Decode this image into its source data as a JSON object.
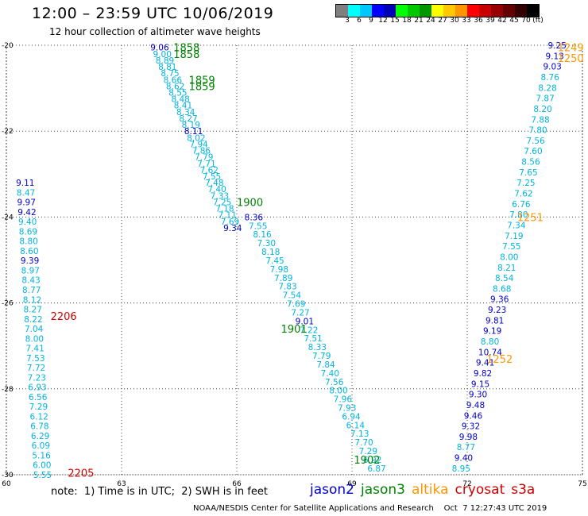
{
  "title": "12:00 – 23:59 UTC 10/06/2019",
  "subtitle": "12 hour collection of altimeter wave heights",
  "colorbar": {
    "colors": [
      "#7f7f7f",
      "#00ffff",
      "#00c8ff",
      "#0000ff",
      "#0000b4",
      "#00ff00",
      "#00c800",
      "#009600",
      "#ffff00",
      "#ffc800",
      "#ff9600",
      "#ff0000",
      "#c80000",
      "#960000",
      "#640000",
      "#320000",
      "#000000"
    ],
    "labels": [
      "3",
      "6",
      "9",
      "12",
      "15",
      "18",
      "21",
      "24",
      "27",
      "30",
      "33",
      "36",
      "39",
      "42",
      "45",
      "70",
      "(ft)"
    ]
  },
  "axes": {
    "x_ticks": [
      "60",
      "63",
      "66",
      "69",
      "72",
      "75"
    ],
    "y_ticks": [
      "-20",
      "-22",
      "-24",
      "-26",
      "-28",
      "-30"
    ],
    "xlim": [
      60,
      75
    ],
    "ylim": [
      -30,
      -20
    ]
  },
  "colors": {
    "jason2": "#0000c8",
    "jason3": "#008000",
    "altika": "#ff9600",
    "cryosat": "#d00000",
    "s3a": "#c80000",
    "obs_light": "#00b4dc",
    "obs_dark": "#0000c8",
    "grid": "#444444"
  },
  "chart_data": {
    "type": "scatter",
    "xlim": [
      60,
      75
    ],
    "ylim": [
      -30,
      -20
    ],
    "tracks": [
      {
        "satellite": "s3a",
        "color": "#00b4dc",
        "lon_start": 60.25,
        "lat_start": -23.2,
        "lon_end": 60.7,
        "lat_end": -30.0,
        "values": [
          "9.11",
          "8.47",
          "9.97",
          "9.42",
          "9.40",
          "8.69",
          "8.80",
          "8.60",
          "9.39",
          "8.97",
          "8.43",
          "8.77",
          "8.12",
          "8.27",
          "8.22",
          "7.04",
          "8.00",
          "7.41",
          "7.53",
          "7.72",
          "7.23",
          "6.93",
          "6.56",
          "7.29",
          "6.12",
          "6.78",
          "6.29",
          "6.09",
          "5.16",
          "6.00",
          "5.55"
        ],
        "dark_idx": [
          0,
          2,
          3,
          8
        ]
      },
      {
        "satellite": "jason3",
        "color": "#00b4dc",
        "lon_start": 63.75,
        "lat_start": -20.05,
        "lon_end": 65.65,
        "lat_end": -24.25,
        "values": [
          "9.06",
          "9.00",
          "8.89",
          "8.81",
          "8.75",
          "8.66",
          "8.62",
          "8.55",
          "8.48",
          "8.41",
          "8.34",
          "8.27",
          "8.19",
          "8.11",
          "8.02",
          "7.94",
          "7.86",
          "7.79",
          "7.71",
          "7.62",
          "7.55",
          "7.48",
          "7.40",
          "7.33",
          "7.25",
          "7.18",
          "7.11",
          "7.69",
          "9.34"
        ],
        "dark_idx": [
          0,
          13,
          28
        ]
      },
      {
        "satellite": "jason3",
        "color": "#00b4dc",
        "lon_start": 66.2,
        "lat_start": -24.0,
        "lon_end": 69.4,
        "lat_end": -29.85,
        "values": [
          "8.36",
          "7.55",
          "8.16",
          "7.30",
          "8.18",
          "7.45",
          "7.98",
          "7.89",
          "7.83",
          "7.54",
          "7.69",
          "7.27",
          "9.01",
          "7.22",
          "7.51",
          "8.33",
          "7.79",
          "7.84",
          "7.40",
          "7.56",
          "8.00",
          "7.96",
          "7.93",
          "6.94",
          "6.14",
          "7.13",
          "7.70",
          "7.29",
          "6.92",
          "6.87"
        ],
        "dark_idx": [
          0,
          12
        ]
      },
      {
        "satellite": "altika",
        "color": "#00b4dc",
        "lon_start": 74.1,
        "lat_start": -20.0,
        "lon_end": 71.6,
        "lat_end": -29.85,
        "values": [
          "9.25",
          "9.13",
          "9.03",
          "8.76",
          "8.28",
          "7.87",
          "8.20",
          "7.88",
          "7.80",
          "7.56",
          "7.60",
          "8.56",
          "7.65",
          "7.25",
          "7.62",
          "6.76",
          "7.80",
          "7.34",
          "7.19",
          "7.55",
          "8.00",
          "8.21",
          "8.54",
          "8.68",
          "9.36",
          "9.23",
          "9.81",
          "9.19",
          "8.80",
          "10.74",
          "9.41",
          "9.82",
          "9.15",
          "9.30",
          "9.48",
          "9.46",
          "9.32",
          "9.98",
          "8.77",
          "9.40",
          "8.95"
        ],
        "dark_idx": [
          0,
          1,
          2,
          24,
          25,
          26,
          27,
          29,
          30,
          31,
          32,
          33,
          34,
          35,
          36,
          37,
          39
        ]
      }
    ],
    "pass_times": [
      {
        "text": "1858",
        "lon": 64.35,
        "lat": -20.05,
        "color": "#008000"
      },
      {
        "text": "1858",
        "lon": 64.35,
        "lat": -20.2,
        "color": "#008000"
      },
      {
        "text": "1859",
        "lon": 64.75,
        "lat": -20.8,
        "color": "#008000"
      },
      {
        "text": "1859",
        "lon": 64.75,
        "lat": -20.95,
        "color": "#008000"
      },
      {
        "text": "1900",
        "lon": 66.0,
        "lat": -23.65,
        "color": "#008000"
      },
      {
        "text": "1901",
        "lon": 67.15,
        "lat": -26.6,
        "color": "#008000"
      },
      {
        "text": "1902",
        "lon": 69.05,
        "lat": -29.65,
        "color": "#008000"
      },
      {
        "text": "1249",
        "lon": 74.35,
        "lat": -20.05,
        "color": "#ff9600"
      },
      {
        "text": "1250",
        "lon": 74.35,
        "lat": -20.3,
        "color": "#ff9600"
      },
      {
        "text": "1251",
        "lon": 73.3,
        "lat": -24.0,
        "color": "#ff9600"
      },
      {
        "text": "1252",
        "lon": 72.5,
        "lat": -27.3,
        "color": "#ff9600"
      },
      {
        "text": "2206",
        "lon": 61.15,
        "lat": -26.3,
        "color": "#d00000"
      },
      {
        "text": "2205",
        "lon": 61.6,
        "lat": -29.95,
        "color": "#d00000"
      }
    ]
  },
  "note": "note:  1) Time is in UTC;  2) SWH is in feet",
  "legend": [
    {
      "name": "jason2",
      "color": "#0000c8"
    },
    {
      "name": "jason3",
      "color": "#008000"
    },
    {
      "name": "altika",
      "color": "#ff9600"
    },
    {
      "name": "cryosat",
      "color": "#d00000"
    },
    {
      "name": "s3a",
      "color": "#c80000"
    }
  ],
  "credit": "NOAA/NESDIS Center for Satellite Applications and Research    Oct  7 12:27:43 UTC 2019"
}
